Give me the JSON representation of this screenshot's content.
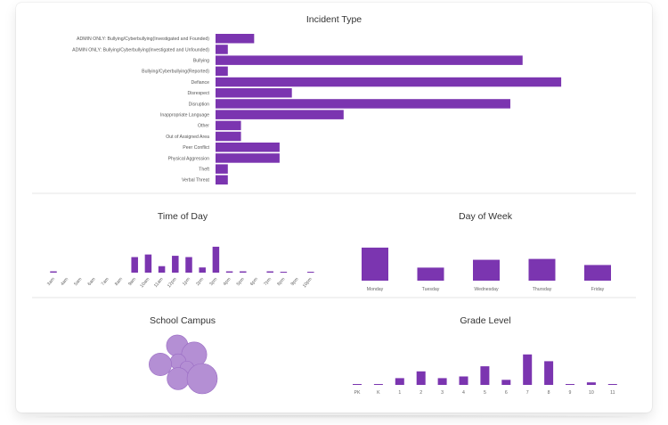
{
  "accent": "#7b35b0",
  "bubble_color": "#b48fd4",
  "incident_type": {
    "title": "Incident Type",
    "chart_data": {
      "type": "bar",
      "orientation": "horizontal",
      "title": "Incident Type",
      "categories": [
        "ADMIN ONLY: Bullying/Cyberbullying(Investigated and Founded)",
        "ADMIN ONLY: Bullying/Cyberbullying(Investigated and Unfounded)",
        "Bullying",
        "Bullying/Cyberbullying(Reported)",
        "Defiance",
        "Disrespect",
        "Disruption",
        "Inappropriate Language",
        "Other",
        "Out of Assigned Area",
        "Peer Conflict",
        "Physical Aggression",
        "Theft",
        "Verbal Threat"
      ],
      "values": [
        44,
        14,
        350,
        14,
        394,
        87,
        336,
        146,
        29,
        29,
        73,
        73,
        14,
        14
      ],
      "xlim": [
        0,
        400
      ],
      "grid": false,
      "legend": "none"
    }
  },
  "time_of_day": {
    "title": "Time of Day",
    "chart_data": {
      "type": "bar",
      "title": "Time of Day",
      "categories": [
        "3am",
        "4am",
        "5am",
        "6am",
        "7am",
        "8am",
        "9am",
        "10am",
        "11am",
        "12pm",
        "1pm",
        "2pm",
        "3pm",
        "4pm",
        "5pm",
        "6pm",
        "7pm",
        "8pm",
        "9pm",
        "10pm"
      ],
      "values": [
        1,
        0,
        0,
        0,
        0,
        0,
        12,
        14,
        5,
        13,
        12,
        4,
        20,
        1,
        1,
        0,
        1,
        0.5,
        0,
        0.5
      ],
      "ylim": [
        0,
        22
      ]
    }
  },
  "day_of_week": {
    "title": "Day of Week",
    "chart_data": {
      "type": "bar",
      "title": "Day of Week",
      "categories": [
        "Monday",
        "Tuesday",
        "Wednesday",
        "Thursday",
        "Friday"
      ],
      "values": [
        38,
        15,
        24,
        25,
        18
      ],
      "ylim": [
        0,
        42
      ]
    }
  },
  "school_campus": {
    "title": "School Campus",
    "bubbles": [
      {
        "value": 14
      },
      {
        "value": 22
      },
      {
        "value": 5
      },
      {
        "value": 16
      },
      {
        "value": 3
      },
      {
        "value": 8
      },
      {
        "value": 15
      },
      {
        "value": 36
      }
    ]
  },
  "grade_level": {
    "title": "Grade Level",
    "chart_data": {
      "type": "bar",
      "title": "Grade Level",
      "categories": [
        "PK",
        "K",
        "1",
        "2",
        "3",
        "4",
        "5",
        "6",
        "7",
        "8",
        "9",
        "10",
        "11"
      ],
      "values": [
        0.5,
        0.5,
        4,
        8,
        4,
        5,
        11,
        3,
        18,
        14,
        0.5,
        1.5,
        0.5
      ],
      "ylim": [
        0,
        20
      ]
    }
  }
}
